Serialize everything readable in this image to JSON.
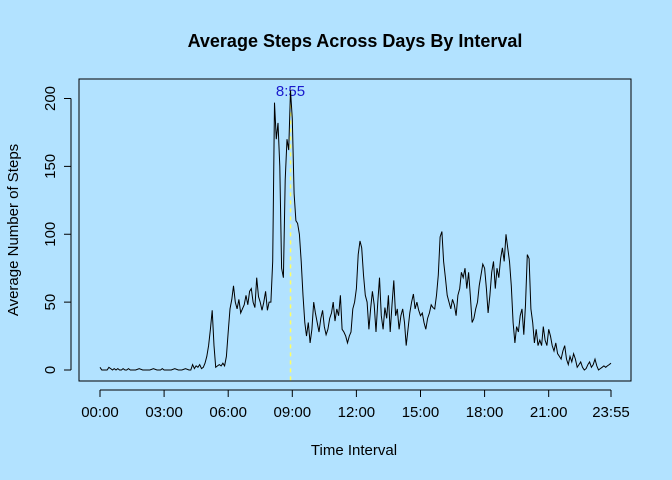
{
  "chart_data": {
    "type": "line",
    "title": "Average Steps Across Days By Interval",
    "xlabel": "Time Interval",
    "ylabel": "Average Number of Steps",
    "x_unit": "minutes",
    "xlim": [
      0,
      1435
    ],
    "ylim": [
      0,
      206
    ],
    "x_ticks": [
      {
        "value": 0,
        "label": "00:00"
      },
      {
        "value": 180,
        "label": "03:00"
      },
      {
        "value": 360,
        "label": "06:00"
      },
      {
        "value": 540,
        "label": "09:00"
      },
      {
        "value": 720,
        "label": "12:00"
      },
      {
        "value": 900,
        "label": "15:00"
      },
      {
        "value": 1080,
        "label": "18:00"
      },
      {
        "value": 1260,
        "label": "21:00"
      },
      {
        "value": 1435,
        "label": "23:55"
      }
    ],
    "y_ticks": [
      {
        "value": 0,
        "label": "0"
      },
      {
        "value": 50,
        "label": "50"
      },
      {
        "value": 100,
        "label": "100"
      },
      {
        "value": 150,
        "label": "150"
      },
      {
        "value": 200,
        "label": "200"
      }
    ],
    "grid": false,
    "line_color": "#000000",
    "marker_line": {
      "x": 535,
      "label": "8:55",
      "line_color": "#ffff66",
      "label_color": "#1a1acc"
    },
    "points": [
      [
        0,
        2
      ],
      [
        5,
        0
      ],
      [
        10,
        0
      ],
      [
        15,
        0
      ],
      [
        20,
        0
      ],
      [
        25,
        2
      ],
      [
        30,
        1
      ],
      [
        35,
        0
      ],
      [
        40,
        1
      ],
      [
        45,
        0
      ],
      [
        50,
        1
      ],
      [
        55,
        0
      ],
      [
        60,
        0
      ],
      [
        65,
        1
      ],
      [
        70,
        0
      ],
      [
        75,
        0
      ],
      [
        80,
        1
      ],
      [
        85,
        0
      ],
      [
        90,
        0
      ],
      [
        95,
        0
      ],
      [
        100,
        0
      ],
      [
        110,
        1
      ],
      [
        120,
        0
      ],
      [
        130,
        0
      ],
      [
        140,
        0
      ],
      [
        150,
        1
      ],
      [
        160,
        0
      ],
      [
        170,
        0
      ],
      [
        175,
        1
      ],
      [
        180,
        0
      ],
      [
        190,
        0
      ],
      [
        200,
        0
      ],
      [
        210,
        1
      ],
      [
        220,
        0
      ],
      [
        230,
        0
      ],
      [
        240,
        1
      ],
      [
        250,
        0
      ],
      [
        255,
        0
      ],
      [
        260,
        4
      ],
      [
        265,
        1
      ],
      [
        270,
        3
      ],
      [
        275,
        2
      ],
      [
        280,
        4
      ],
      [
        285,
        1
      ],
      [
        290,
        2
      ],
      [
        295,
        5
      ],
      [
        300,
        10
      ],
      [
        305,
        18
      ],
      [
        310,
        30
      ],
      [
        315,
        44
      ],
      [
        320,
        18
      ],
      [
        325,
        2
      ],
      [
        330,
        3
      ],
      [
        335,
        4
      ],
      [
        340,
        3
      ],
      [
        345,
        5
      ],
      [
        350,
        3
      ],
      [
        355,
        10
      ],
      [
        360,
        28
      ],
      [
        365,
        45
      ],
      [
        370,
        52
      ],
      [
        375,
        62
      ],
      [
        380,
        50
      ],
      [
        385,
        45
      ],
      [
        390,
        52
      ],
      [
        395,
        42
      ],
      [
        400,
        45
      ],
      [
        405,
        48
      ],
      [
        410,
        55
      ],
      [
        415,
        48
      ],
      [
        420,
        58
      ],
      [
        425,
        60
      ],
      [
        430,
        50
      ],
      [
        435,
        46
      ],
      [
        440,
        68
      ],
      [
        445,
        54
      ],
      [
        450,
        50
      ],
      [
        455,
        44
      ],
      [
        460,
        50
      ],
      [
        465,
        58
      ],
      [
        470,
        44
      ],
      [
        475,
        50
      ],
      [
        480,
        50
      ],
      [
        485,
        80
      ],
      [
        490,
        197
      ],
      [
        495,
        170
      ],
      [
        500,
        182
      ],
      [
        505,
        150
      ],
      [
        510,
        75
      ],
      [
        515,
        68
      ],
      [
        520,
        140
      ],
      [
        525,
        170
      ],
      [
        530,
        162
      ],
      [
        535,
        206
      ],
      [
        540,
        185
      ],
      [
        545,
        130
      ],
      [
        550,
        110
      ],
      [
        555,
        108
      ],
      [
        560,
        100
      ],
      [
        565,
        80
      ],
      [
        570,
        55
      ],
      [
        575,
        35
      ],
      [
        580,
        25
      ],
      [
        585,
        35
      ],
      [
        590,
        20
      ],
      [
        595,
        30
      ],
      [
        600,
        50
      ],
      [
        605,
        42
      ],
      [
        610,
        35
      ],
      [
        615,
        28
      ],
      [
        620,
        38
      ],
      [
        625,
        44
      ],
      [
        630,
        32
      ],
      [
        635,
        26
      ],
      [
        640,
        30
      ],
      [
        645,
        38
      ],
      [
        650,
        42
      ],
      [
        655,
        50
      ],
      [
        660,
        36
      ],
      [
        665,
        45
      ],
      [
        670,
        40
      ],
      [
        675,
        55
      ],
      [
        680,
        30
      ],
      [
        685,
        28
      ],
      [
        690,
        25
      ],
      [
        695,
        20
      ],
      [
        700,
        25
      ],
      [
        705,
        28
      ],
      [
        710,
        45
      ],
      [
        715,
        50
      ],
      [
        720,
        60
      ],
      [
        725,
        85
      ],
      [
        730,
        95
      ],
      [
        735,
        90
      ],
      [
        740,
        70
      ],
      [
        745,
        55
      ],
      [
        750,
        50
      ],
      [
        755,
        30
      ],
      [
        760,
        45
      ],
      [
        765,
        58
      ],
      [
        770,
        48
      ],
      [
        775,
        28
      ],
      [
        780,
        50
      ],
      [
        785,
        68
      ],
      [
        790,
        40
      ],
      [
        795,
        30
      ],
      [
        800,
        46
      ],
      [
        805,
        38
      ],
      [
        810,
        55
      ],
      [
        815,
        28
      ],
      [
        820,
        48
      ],
      [
        825,
        66
      ],
      [
        830,
        40
      ],
      [
        835,
        45
      ],
      [
        840,
        30
      ],
      [
        845,
        40
      ],
      [
        850,
        45
      ],
      [
        855,
        35
      ],
      [
        860,
        18
      ],
      [
        865,
        30
      ],
      [
        870,
        42
      ],
      [
        875,
        50
      ],
      [
        880,
        56
      ],
      [
        885,
        45
      ],
      [
        890,
        50
      ],
      [
        895,
        44
      ],
      [
        900,
        40
      ],
      [
        905,
        42
      ],
      [
        910,
        35
      ],
      [
        915,
        30
      ],
      [
        920,
        38
      ],
      [
        925,
        42
      ],
      [
        930,
        48
      ],
      [
        935,
        46
      ],
      [
        940,
        45
      ],
      [
        945,
        55
      ],
      [
        950,
        70
      ],
      [
        955,
        98
      ],
      [
        960,
        102
      ],
      [
        965,
        80
      ],
      [
        970,
        68
      ],
      [
        975,
        55
      ],
      [
        980,
        50
      ],
      [
        985,
        45
      ],
      [
        990,
        52
      ],
      [
        995,
        48
      ],
      [
        1000,
        40
      ],
      [
        1005,
        55
      ],
      [
        1010,
        60
      ],
      [
        1015,
        72
      ],
      [
        1020,
        68
      ],
      [
        1025,
        75
      ],
      [
        1030,
        60
      ],
      [
        1035,
        72
      ],
      [
        1040,
        55
      ],
      [
        1045,
        35
      ],
      [
        1050,
        38
      ],
      [
        1055,
        45
      ],
      [
        1060,
        50
      ],
      [
        1065,
        62
      ],
      [
        1070,
        70
      ],
      [
        1075,
        78
      ],
      [
        1080,
        75
      ],
      [
        1085,
        60
      ],
      [
        1090,
        42
      ],
      [
        1095,
        55
      ],
      [
        1100,
        72
      ],
      [
        1105,
        80
      ],
      [
        1110,
        60
      ],
      [
        1115,
        75
      ],
      [
        1120,
        68
      ],
      [
        1125,
        82
      ],
      [
        1130,
        90
      ],
      [
        1135,
        80
      ],
      [
        1140,
        100
      ],
      [
        1145,
        90
      ],
      [
        1150,
        80
      ],
      [
        1155,
        62
      ],
      [
        1160,
        35
      ],
      [
        1165,
        20
      ],
      [
        1170,
        32
      ],
      [
        1175,
        28
      ],
      [
        1180,
        40
      ],
      [
        1185,
        45
      ],
      [
        1190,
        26
      ],
      [
        1195,
        48
      ],
      [
        1200,
        85
      ],
      [
        1205,
        82
      ],
      [
        1210,
        45
      ],
      [
        1215,
        35
      ],
      [
        1220,
        20
      ],
      [
        1225,
        30
      ],
      [
        1230,
        18
      ],
      [
        1235,
        22
      ],
      [
        1240,
        18
      ],
      [
        1245,
        32
      ],
      [
        1250,
        22
      ],
      [
        1255,
        18
      ],
      [
        1260,
        30
      ],
      [
        1265,
        25
      ],
      [
        1270,
        18
      ],
      [
        1275,
        14
      ],
      [
        1280,
        20
      ],
      [
        1285,
        12
      ],
      [
        1290,
        10
      ],
      [
        1295,
        8
      ],
      [
        1300,
        14
      ],
      [
        1305,
        18
      ],
      [
        1310,
        8
      ],
      [
        1315,
        4
      ],
      [
        1320,
        10
      ],
      [
        1325,
        6
      ],
      [
        1330,
        12
      ],
      [
        1335,
        8
      ],
      [
        1340,
        2
      ],
      [
        1345,
        4
      ],
      [
        1350,
        6
      ],
      [
        1355,
        2
      ],
      [
        1360,
        0
      ],
      [
        1365,
        1
      ],
      [
        1370,
        4
      ],
      [
        1375,
        6
      ],
      [
        1380,
        2
      ],
      [
        1385,
        4
      ],
      [
        1390,
        8
      ],
      [
        1395,
        3
      ],
      [
        1400,
        0
      ],
      [
        1405,
        1
      ],
      [
        1410,
        2
      ],
      [
        1415,
        3
      ],
      [
        1420,
        2
      ],
      [
        1425,
        3
      ],
      [
        1430,
        4
      ],
      [
        1435,
        5
      ]
    ]
  }
}
